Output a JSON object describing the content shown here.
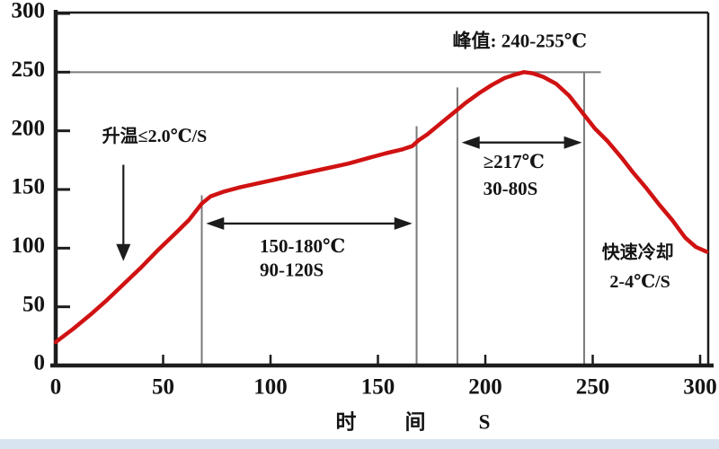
{
  "chart_data": {
    "type": "line",
    "title": "",
    "xlabel": "时 间 S",
    "ylabel": "",
    "xlim": [
      0,
      300
    ],
    "ylim": [
      0,
      300
    ],
    "x_ticks": [
      0,
      50,
      100,
      150,
      200,
      250,
      300
    ],
    "y_ticks": [
      0,
      50,
      100,
      150,
      200,
      250,
      300
    ],
    "grid": false,
    "legend": "none",
    "colors": {
      "curve": "#d01212",
      "axis": "#1c1c1c",
      "guide": "#7a7a7a",
      "text": "#141414",
      "background": "#ffffff",
      "bottom_strip": "#d9e4f1"
    },
    "series": [
      {
        "name": "temperature-profile",
        "color": "#d01212",
        "points": [
          [
            0,
            20
          ],
          [
            8,
            31
          ],
          [
            16,
            43
          ],
          [
            24,
            56
          ],
          [
            32,
            70
          ],
          [
            40,
            84
          ],
          [
            48,
            99
          ],
          [
            56,
            113
          ],
          [
            62,
            124
          ],
          [
            68,
            138
          ],
          [
            72,
            144
          ],
          [
            78,
            148
          ],
          [
            86,
            152
          ],
          [
            96,
            156
          ],
          [
            106,
            160
          ],
          [
            116,
            164
          ],
          [
            126,
            168
          ],
          [
            136,
            172
          ],
          [
            146,
            177
          ],
          [
            154,
            181
          ],
          [
            161,
            184
          ],
          [
            166,
            187
          ],
          [
            169,
            192
          ],
          [
            173,
            197
          ],
          [
            179,
            206
          ],
          [
            185,
            215
          ],
          [
            191,
            224
          ],
          [
            197,
            232
          ],
          [
            203,
            239
          ],
          [
            209,
            245
          ],
          [
            214,
            248
          ],
          [
            218,
            250
          ],
          [
            222,
            249
          ],
          [
            227,
            246
          ],
          [
            233,
            240
          ],
          [
            239,
            230
          ],
          [
            245,
            216
          ],
          [
            251,
            202
          ],
          [
            257,
            191
          ],
          [
            263,
            178
          ],
          [
            269,
            164
          ],
          [
            275,
            151
          ],
          [
            281,
            137
          ],
          [
            287,
            124
          ],
          [
            293,
            109
          ],
          [
            298,
            101
          ],
          [
            303,
            97
          ]
        ]
      }
    ],
    "reference_lines": {
      "peak_line": {
        "T": 250,
        "t_from": 0,
        "t_to": 250
      },
      "vertical_lines": [
        {
          "t": 68,
          "T_top": 145
        },
        {
          "t": 168,
          "T_top": 204
        },
        {
          "t": 187,
          "T_top": 237
        },
        {
          "t": 246,
          "T_top": 250
        }
      ]
    },
    "arrows": [
      {
        "id": "ramp-down-arrow",
        "kind": "down",
        "t": 31.5,
        "T_from": 171,
        "T_tip": 89
      },
      {
        "id": "soak-window-arrow",
        "kind": "double",
        "T": 121,
        "t_from": 70,
        "t_to": 166
      },
      {
        "id": "tal-window-arrow",
        "kind": "double",
        "T": 190,
        "t_from": 189,
        "t_to": 245
      }
    ],
    "annotations": [
      {
        "id": "ramp-rate-label",
        "text": "升温≤2.0℃/S",
        "t": 46,
        "T": 194,
        "align": "middle",
        "font_size": 20
      },
      {
        "id": "peak-label",
        "text": "峰值: 240-255℃",
        "t": 216,
        "T": 275,
        "align": "middle",
        "font_size": 21
      },
      {
        "id": "soak-temp-label",
        "text": "150-180℃",
        "t": 95,
        "T": 100,
        "align": "start",
        "font_size": 21
      },
      {
        "id": "soak-time-label",
        "text": "90-120S",
        "t": 95,
        "T": 80,
        "align": "start",
        "font_size": 21
      },
      {
        "id": "tal-temp-label",
        "text": "≥217℃",
        "t": 199,
        "T": 172,
        "align": "start",
        "font_size": 21
      },
      {
        "id": "tal-time-label",
        "text": "30-80S",
        "t": 199,
        "T": 149,
        "align": "start",
        "font_size": 21
      },
      {
        "id": "cooling-label",
        "text": "快速冷却",
        "t": 271,
        "T": 95,
        "align": "middle",
        "font_size": 20
      },
      {
        "id": "cooling-rate-label",
        "text": "2-4℃/S",
        "t": 272,
        "T": 70,
        "align": "middle",
        "font_size": 20
      }
    ]
  }
}
